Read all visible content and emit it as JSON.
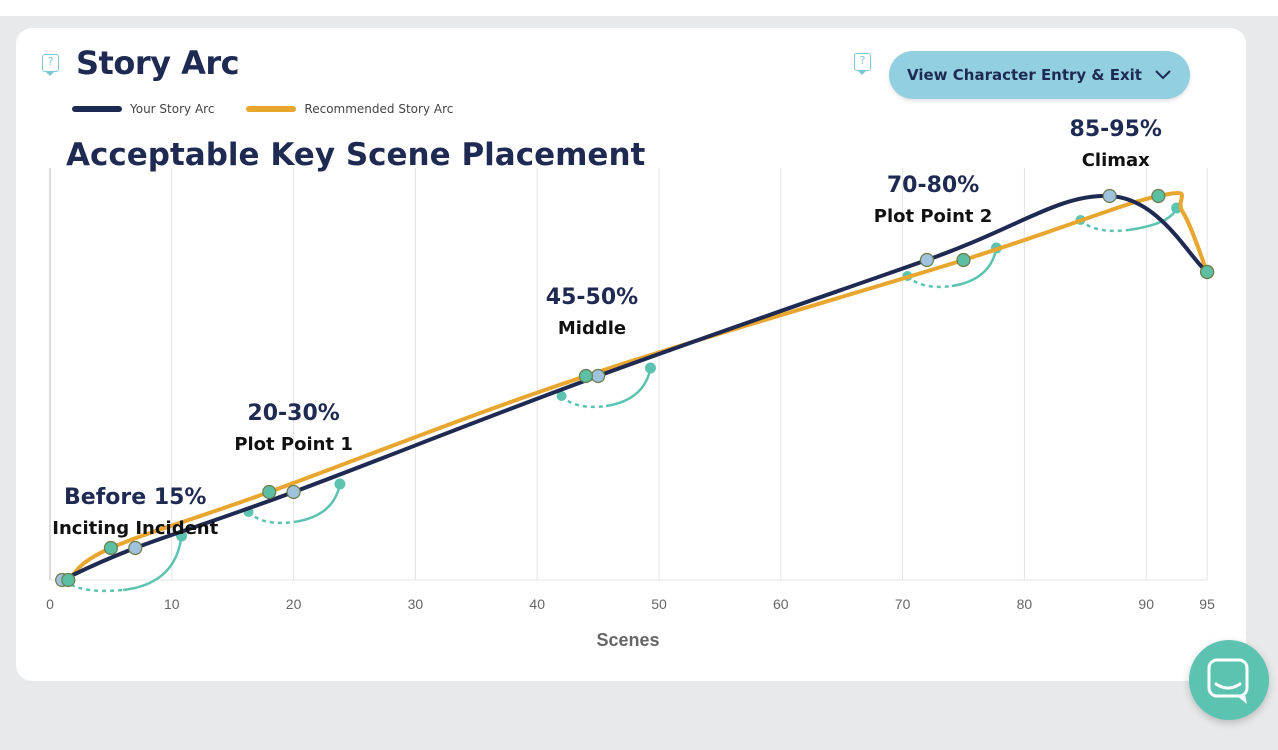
{
  "header": {
    "title": "Story Arc",
    "view_button_label": "View Character Entry & Exit",
    "help_glyph": "?"
  },
  "legend": [
    {
      "name": "Your Story Arc",
      "color": "#1f2a52"
    },
    {
      "name": "Recommended Story Arc",
      "color": "#e9a62f"
    }
  ],
  "chart_data": {
    "type": "line",
    "title": "",
    "subtitle": "Acceptable Key Scene Placement",
    "xlabel": "Scenes",
    "ylabel": "",
    "xlim": [
      0,
      95
    ],
    "ylim": [
      0,
      100
    ],
    "xticks": [
      0,
      10,
      20,
      30,
      40,
      50,
      60,
      70,
      80,
      90,
      95
    ],
    "grid": "vertical",
    "series": [
      {
        "name": "Your Story Arc",
        "color": "#1f2a52",
        "points": [
          [
            1,
            0
          ],
          [
            7,
            8
          ],
          [
            20,
            22
          ],
          [
            45,
            51
          ],
          [
            72,
            80
          ],
          [
            87,
            96
          ],
          [
            95,
            77
          ]
        ],
        "markers": [
          [
            1,
            0
          ],
          [
            7,
            8
          ],
          [
            20,
            22
          ],
          [
            45,
            51
          ],
          [
            72,
            80
          ],
          [
            87,
            96
          ],
          [
            95,
            77
          ]
        ]
      },
      {
        "name": "Recommended Story Arc",
        "color": "#e9a62f",
        "points": [
          [
            1.5,
            0
          ],
          [
            5,
            8
          ],
          [
            18,
            22
          ],
          [
            44,
            51
          ],
          [
            75,
            80
          ],
          [
            91,
            96
          ],
          [
            93,
            92
          ],
          [
            95,
            77
          ]
        ],
        "markers": [
          [
            1.5,
            0
          ],
          [
            5,
            8
          ],
          [
            18,
            22
          ],
          [
            44,
            51
          ],
          [
            75,
            80
          ],
          [
            91,
            96
          ],
          [
            95,
            77
          ]
        ]
      }
    ],
    "annotations": [
      {
        "percent": "Before 15%",
        "label": "Inciting Incident",
        "x": 7,
        "y": 19
      },
      {
        "percent": "20-30%",
        "label": "Plot Point 1",
        "x": 20,
        "y": 40
      },
      {
        "percent": "45-50%",
        "label": "Middle",
        "x": 44.5,
        "y": 69
      },
      {
        "percent": "70-80%",
        "label": "Plot Point 2",
        "x": 72.5,
        "y": 97
      },
      {
        "percent": "85-95%",
        "label": "Climax",
        "x": 87.5,
        "y": 111
      }
    ],
    "placement_ranges": [
      {
        "from": [
          1.2,
          0
        ],
        "to": [
          10.8,
          11
        ]
      },
      {
        "from": [
          16.3,
          17
        ],
        "to": [
          23.8,
          24
        ]
      },
      {
        "from": [
          42,
          46
        ],
        "to": [
          49.3,
          53
        ]
      },
      {
        "from": [
          70.4,
          76
        ],
        "to": [
          77.7,
          83
        ]
      },
      {
        "from": [
          84.6,
          90
        ],
        "to": [
          92.5,
          93
        ]
      }
    ],
    "colors": {
      "marker_teal": "#5cbfa3",
      "marker_blue": "#9fc3dc",
      "range_arc": "#5cc3b0",
      "grid": "#e4e4e4"
    }
  }
}
